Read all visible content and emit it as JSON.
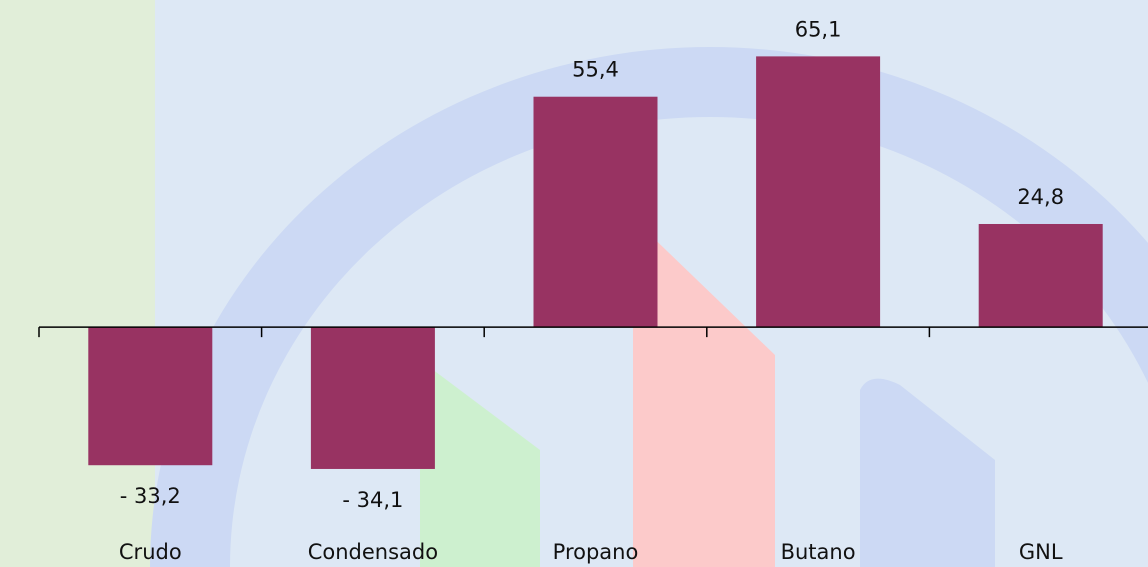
{
  "chart_data": {
    "type": "bar",
    "categories": [
      "Crudo",
      "Condensado",
      "Propano",
      "Butano",
      "GNL"
    ],
    "values": [
      -33.2,
      -34.1,
      55.4,
      65.1,
      24.8
    ],
    "value_labels": [
      "- 33,2",
      "- 34,1",
      "55,4",
      "65,1",
      "24,8"
    ],
    "color": "#983362",
    "ylim": [
      -40,
      70
    ]
  }
}
